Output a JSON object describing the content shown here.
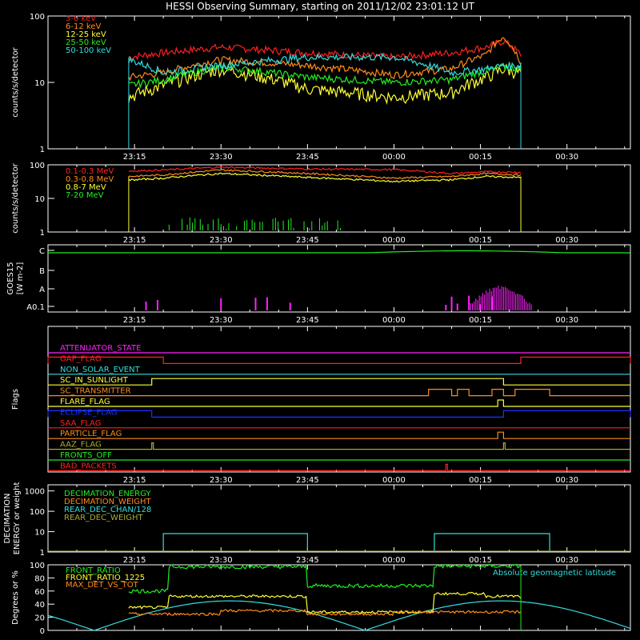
{
  "title": "HESSI Observing Summary, starting on 2011/12/02 23:01:12 UT",
  "time_ticks": [
    "23:15",
    "23:30",
    "23:45",
    "00:00",
    "00:15",
    "00:30"
  ],
  "chart_data": [
    {
      "type": "line",
      "ylabel": "counts/s/detector",
      "y_log": true,
      "y_ticks": [
        "1",
        "10",
        "100"
      ],
      "ylim": [
        1,
        100
      ],
      "data_window": [
        "23:14",
        "00:22"
      ],
      "series": [
        {
          "name": "3-6 keV",
          "color": "#ff2020",
          "x": [
            "23:14",
            "23:20",
            "23:30",
            "23:45",
            "00:00",
            "00:10",
            "00:16",
            "00:19",
            "00:22"
          ],
          "values": [
            24,
            28,
            34,
            28,
            24,
            28,
            34,
            42,
            26
          ]
        },
        {
          "name": "6-12 keV",
          "color": "#ff8c1a",
          "x": [
            "23:14",
            "23:20",
            "23:30",
            "23:45",
            "00:00",
            "00:10",
            "00:16",
            "00:19",
            "00:22"
          ],
          "values": [
            12,
            14,
            22,
            18,
            13,
            16,
            26,
            50,
            20
          ]
        },
        {
          "name": "12-25 keV",
          "color": "#ffff33",
          "x": [
            "23:14",
            "23:20",
            "23:30",
            "23:45",
            "00:00",
            "00:10",
            "00:16",
            "00:19",
            "00:22"
          ],
          "values": [
            6,
            9,
            16,
            8,
            6,
            7,
            12,
            16,
            14
          ]
        },
        {
          "name": "25-50 keV",
          "color": "#22ee22",
          "x": [
            "23:14",
            "23:20",
            "23:30",
            "23:45",
            "00:00",
            "00:10",
            "00:16",
            "00:19",
            "00:22"
          ],
          "values": [
            9,
            11,
            17,
            12,
            10,
            11,
            15,
            17,
            16
          ]
        },
        {
          "name": "50-100 keV",
          "color": "#33dddd",
          "x": [
            "23:14",
            "23:20",
            "23:30",
            "23:45",
            "00:00",
            "00:10",
            "00:16",
            "00:19",
            "00:22"
          ],
          "values": [
            22,
            14,
            18,
            24,
            24,
            14,
            16,
            18,
            18
          ]
        }
      ]
    },
    {
      "type": "line",
      "ylabel": "counts/s/detector",
      "y_log": true,
      "y_ticks": [
        "1",
        "10",
        "100"
      ],
      "ylim": [
        1,
        100
      ],
      "data_window": [
        "23:14",
        "00:22"
      ],
      "series": [
        {
          "name": "0.1-0.3 MeV",
          "color": "#ff2020",
          "x": [
            "23:14",
            "23:20",
            "23:30",
            "23:45",
            "00:00",
            "00:10",
            "00:16",
            "00:22"
          ],
          "values": [
            65,
            70,
            85,
            75,
            72,
            55,
            62,
            60
          ]
        },
        {
          "name": "0.3-0.8 MeV",
          "color": "#ff8c1a",
          "x": [
            "23:14",
            "23:20",
            "23:30",
            "23:45",
            "00:00",
            "00:10",
            "00:16",
            "00:22"
          ],
          "values": [
            45,
            50,
            70,
            55,
            40,
            45,
            55,
            50
          ]
        },
        {
          "name": "0.8-7 MeV",
          "color": "#ffff33",
          "x": [
            "23:14",
            "23:20",
            "23:30",
            "23:45",
            "00:00",
            "00:10",
            "00:16",
            "00:22"
          ],
          "values": [
            35,
            40,
            55,
            42,
            32,
            36,
            45,
            42
          ]
        },
        {
          "name": "7-20 MeV",
          "color": "#22ee22",
          "x": [
            "23:21",
            "23:30",
            "23:44",
            "23:52"
          ],
          "values": [
            1.5,
            2,
            2.5,
            2
          ]
        }
      ]
    },
    {
      "type": "line",
      "ylabel": "GOES15 [W m-2]",
      "y_ticks": [
        "A0.1",
        "A",
        "B",
        "C"
      ],
      "series": [
        {
          "name": "GOES15",
          "color": "#22ee22",
          "x": [
            "23:00",
            "23:30",
            "00:00",
            "00:15",
            "00:30",
            "00:40"
          ],
          "values": [
            "C",
            "C",
            "C",
            "C",
            "C",
            "C"
          ]
        },
        {
          "name": "",
          "color": "#ff22ff",
          "x": [
            "00:14",
            "00:19",
            "00:23"
          ],
          "values": [
            "A0.1",
            "A",
            "A0.1"
          ]
        }
      ]
    },
    {
      "type": "line",
      "ylabel": "Flags",
      "flags": [
        {
          "name": "ATTENUATOR_STATE",
          "color": "#ff22ff",
          "high_intervals": []
        },
        {
          "name": "GAP_FLAG",
          "color": "#ff2020",
          "high_intervals": [
            [
              "23:00",
              "23:20"
            ],
            [
              "00:22",
              "00:41"
            ]
          ]
        },
        {
          "name": "NON_SOLAR_EVENT",
          "color": "#33dddd",
          "high_intervals": []
        },
        {
          "name": "SC_IN_SUNLIGHT",
          "color": "#ffff33",
          "high_intervals": [
            [
              "23:18",
              "00:19"
            ]
          ]
        },
        {
          "name": "SC_TRANSMITTER",
          "color": "#ff8c1a",
          "high_intervals": [
            [
              "00:06",
              "00:10"
            ],
            [
              "00:11",
              "00:13"
            ],
            [
              "00:17",
              "00:19"
            ],
            [
              "00:21",
              "00:27"
            ]
          ]
        },
        {
          "name": "FLARE_FLAG",
          "color": "#ffff33",
          "high_intervals": [
            [
              "00:18",
              "00:19"
            ]
          ]
        },
        {
          "name": "ECLIPSE_FLAG",
          "color": "#2030ff",
          "high_intervals": [
            [
              "23:00",
              "23:18"
            ],
            [
              "00:19",
              "00:41"
            ]
          ]
        },
        {
          "name": "SAA_FLAG",
          "color": "#ff2020",
          "high_intervals": []
        },
        {
          "name": "PARTICLE_FLAG",
          "color": "#ff8c1a",
          "high_intervals": [
            [
              "00:18",
              "00:19"
            ]
          ]
        },
        {
          "name": "AAZ_FLAG",
          "color": "#aaaa33",
          "high_intervals": [
            [
              "23:18",
              "23:18"
            ],
            [
              "00:19",
              "00:19"
            ]
          ]
        },
        {
          "name": "FRONTS_OFF",
          "color": "#22ee22",
          "high_intervals": []
        },
        {
          "name": "BAD_PACKETS",
          "color": "#ff2020",
          "high_intervals": [
            [
              "00:09",
              "00:09"
            ]
          ]
        }
      ]
    },
    {
      "type": "line",
      "ylabel": "DECIMATION ENERGY or weight",
      "y_log": true,
      "y_ticks": [
        "1",
        "10",
        "100",
        "1000"
      ],
      "ylim": [
        1,
        1000
      ],
      "series": [
        {
          "name": "DECIMATION_ENERGY",
          "color": "#22ee22",
          "x": [],
          "values": []
        },
        {
          "name": "DECIMATION_WEIGHT",
          "color": "#ff8c1a",
          "x": [],
          "values": []
        },
        {
          "name": "REAR_DEC_CHAN/128",
          "color": "#33dddd",
          "x": [
            "23:20",
            "23:45",
            "00:07",
            "00:27"
          ],
          "values": [
            8,
            8,
            8,
            8
          ]
        },
        {
          "name": "REAR_DEC_WEIGHT",
          "color": "#aaaa33",
          "x": [
            "23:20",
            "23:45",
            "00:07",
            "00:27"
          ],
          "values": [
            1,
            1,
            1,
            1
          ]
        }
      ]
    },
    {
      "type": "line",
      "ylabel": "Degrees or %",
      "y_ticks": [
        "0",
        "20",
        "40",
        "60",
        "80",
        "100"
      ],
      "ylim": [
        0,
        100
      ],
      "series": [
        {
          "name": "FRONT_RATIO",
          "color": "#22ee22",
          "x": [
            "23:14",
            "23:21",
            "23:45",
            "00:07",
            "00:22"
          ],
          "values": [
            60,
            97,
            68,
            98,
            98
          ]
        },
        {
          "name": "FRONT_RATIO_1225",
          "color": "#ffff33",
          "x": [
            "23:14",
            "23:21",
            "23:45",
            "00:07",
            "00:16",
            "00:22"
          ],
          "values": [
            35,
            52,
            28,
            56,
            52,
            50
          ]
        },
        {
          "name": "MAX_DET_VS_TOT",
          "color": "#ff8c1a",
          "x": [
            "23:14",
            "23:30",
            "23:45",
            "00:00",
            "00:22"
          ],
          "values": [
            25,
            30,
            25,
            28,
            28
          ]
        },
        {
          "name": "Absolute geomagnetic latitude",
          "color": "#33dddd",
          "x": [
            "23:00",
            "23:08",
            "23:33",
            "23:55",
            "00:18",
            "00:41"
          ],
          "values": [
            22,
            0,
            45,
            0,
            45,
            15
          ]
        }
      ]
    }
  ]
}
